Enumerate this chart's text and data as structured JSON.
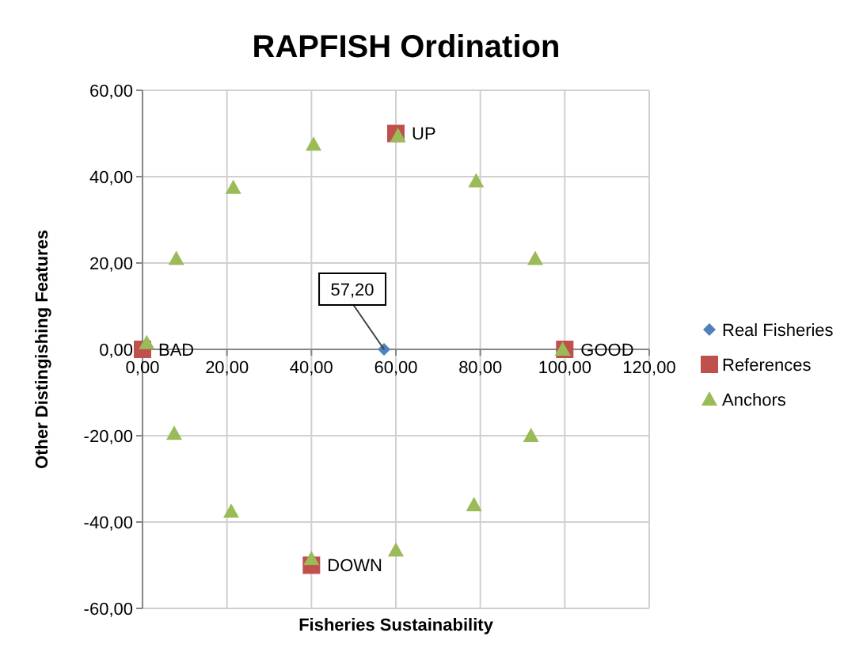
{
  "chart_data": {
    "type": "scatter",
    "title": "RAPFISH Ordination",
    "xlabel": "Fisheries Sustainability",
    "ylabel": "Other Distingishing Features",
    "xlim": [
      0,
      120
    ],
    "ylim": [
      -60,
      60
    ],
    "xticks": [
      {
        "value": 0,
        "label": "0,00"
      },
      {
        "value": 20,
        "label": "20,00"
      },
      {
        "value": 40,
        "label": "40,00"
      },
      {
        "value": 60,
        "label": "60,00"
      },
      {
        "value": 80,
        "label": "80,00"
      },
      {
        "value": 100,
        "label": "100,00"
      },
      {
        "value": 120,
        "label": "120,00"
      }
    ],
    "yticks": [
      {
        "value": -60,
        "label": "-60,00"
      },
      {
        "value": -40,
        "label": "-40,00"
      },
      {
        "value": -20,
        "label": "-20,00"
      },
      {
        "value": 0,
        "label": "0,00"
      },
      {
        "value": 20,
        "label": "20,00"
      },
      {
        "value": 40,
        "label": "40,00"
      },
      {
        "value": 60,
        "label": "60,00"
      }
    ],
    "grid": true,
    "legend": "right",
    "series": [
      {
        "name": "Real Fisheries",
        "color": "#4f81bd",
        "marker": "diamond",
        "x": [
          57.2
        ],
        "values": [
          0
        ]
      },
      {
        "name": "References",
        "color": "#c0504d",
        "marker": "square",
        "x": [
          0,
          100,
          60,
          40
        ],
        "values": [
          0,
          0,
          50,
          -50
        ]
      },
      {
        "name": "Anchors",
        "color": "#9bbb59",
        "marker": "triangle",
        "x": [
          1,
          8,
          21.5,
          40.5,
          60.5,
          79,
          93,
          99.5,
          92,
          78.5,
          60,
          40,
          21,
          7.5
        ],
        "values": [
          1.5,
          21,
          37.5,
          47.5,
          49.5,
          39,
          21,
          0,
          -20,
          -36,
          -46.5,
          -48.5,
          -37.5,
          -19.5
        ]
      }
    ],
    "annotations": [
      {
        "text": "57,20",
        "x": 57.2,
        "y": 0
      },
      {
        "text": "BAD",
        "x": 0,
        "y": 0
      },
      {
        "text": "GOOD",
        "x": 100,
        "y": 0
      },
      {
        "text": "UP",
        "x": 60,
        "y": 50
      },
      {
        "text": "DOWN",
        "x": 40,
        "y": -50
      }
    ]
  }
}
